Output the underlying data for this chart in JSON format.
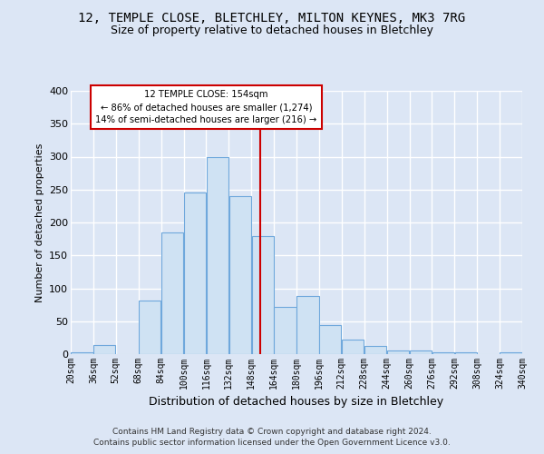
{
  "title": "12, TEMPLE CLOSE, BLETCHLEY, MILTON KEYNES, MK3 7RG",
  "subtitle": "Size of property relative to detached houses in Bletchley",
  "xlabel": "Distribution of detached houses by size in Bletchley",
  "ylabel": "Number of detached properties",
  "bin_labels": [
    "20sqm",
    "36sqm",
    "52sqm",
    "68sqm",
    "84sqm",
    "100sqm",
    "116sqm",
    "132sqm",
    "148sqm",
    "164sqm",
    "180sqm",
    "196sqm",
    "212sqm",
    "228sqm",
    "244sqm",
    "260sqm",
    "276sqm",
    "292sqm",
    "308sqm",
    "324sqm",
    "340sqm"
  ],
  "bin_edges": [
    20,
    36,
    52,
    68,
    84,
    100,
    116,
    132,
    148,
    164,
    180,
    196,
    212,
    228,
    244,
    260,
    276,
    292,
    308,
    324,
    340
  ],
  "bar_heights": [
    3,
    14,
    0,
    82,
    185,
    245,
    300,
    240,
    180,
    72,
    88,
    44,
    22,
    12,
    5,
    5,
    3,
    3,
    0,
    3
  ],
  "bar_color": "#cfe2f3",
  "bar_edge_color": "#6fa8dc",
  "property_size": 154,
  "vline_color": "#cc0000",
  "annotation_text": "12 TEMPLE CLOSE: 154sqm\n← 86% of detached houses are smaller (1,274)\n14% of semi-detached houses are larger (216) →",
  "annotation_box_color": "#ffffff",
  "annotation_box_edge_color": "#cc0000",
  "footer_line1": "Contains HM Land Registry data © Crown copyright and database right 2024.",
  "footer_line2": "Contains public sector information licensed under the Open Government Licence v3.0.",
  "bg_color": "#dce6f5",
  "grid_color": "#ffffff",
  "ylim": [
    0,
    400
  ],
  "yticks": [
    0,
    50,
    100,
    150,
    200,
    250,
    300,
    350,
    400
  ],
  "title_fontsize": 10,
  "subtitle_fontsize": 9,
  "ylabel_fontsize": 8,
  "xlabel_fontsize": 9,
  "tick_fontsize": 7,
  "footer_fontsize": 6.5
}
